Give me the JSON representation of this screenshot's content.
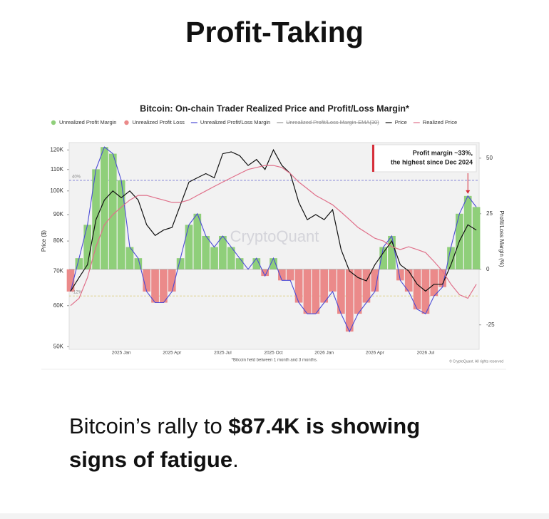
{
  "header": {
    "title": "Profit-Taking"
  },
  "chart_data": {
    "type": "line",
    "title": "Bitcoin: On-chain Trader Realized Price and Profit/Loss Margin*",
    "ylabel": "Price ($)",
    "y2label": "Profit/Loss Margin (%)",
    "log_y": true,
    "watermark": "CryptoQuant",
    "footnote": "*Bitcoin held between 1 month and 3 months.",
    "credit": "© CryptoQuant. All rights reserved",
    "categories": [
      null,
      null,
      null,
      null,
      null,
      null,
      "2025 Jan",
      null,
      null,
      null,
      null,
      null,
      "2025 Apr",
      null,
      null,
      null,
      null,
      null,
      "2025 Jul",
      null,
      null,
      null,
      null,
      null,
      "2025 Oct",
      null,
      null,
      null,
      null,
      null,
      "2026 Jan",
      null,
      null,
      null,
      null,
      null,
      "2026 Apr",
      null,
      null,
      null,
      null,
      null,
      "2026 Jul",
      null,
      null,
      null,
      null,
      null,
      null
    ],
    "ylim": [
      49400,
      124000
    ],
    "yticks": [
      {
        "value": 50000,
        "label": "50K"
      },
      {
        "value": 60000,
        "label": "60K"
      },
      {
        "value": 70000,
        "label": "70K"
      },
      {
        "value": 80000,
        "label": "80K"
      },
      {
        "value": 90000,
        "label": "90K"
      },
      {
        "value": 100000,
        "label": "100K"
      },
      {
        "value": 110000,
        "label": "110K"
      },
      {
        "value": 120000,
        "label": "120K"
      }
    ],
    "y2lim": [
      -36,
      57
    ],
    "y2ticks": [
      -25,
      0,
      25,
      50
    ],
    "reference_lines": [
      {
        "value": 40,
        "label": "40%",
        "color": "#6a6ad0"
      },
      {
        "value": -12,
        "label": "-12%",
        "color": "#d8c870"
      }
    ],
    "annotation": {
      "lines": [
        "Profit margin ~33%,",
        "the highest since Dec 2024"
      ],
      "color": "#d62f3a",
      "index": 47
    },
    "series": [
      {
        "name": "Unrealized Profit Margin",
        "type": "bar",
        "axis": "y2",
        "color": "#8fcf7a",
        "values": [
          null,
          5,
          20,
          45,
          55,
          52,
          40,
          10,
          5,
          null,
          null,
          null,
          null,
          5,
          20,
          25,
          15,
          10,
          15,
          10,
          5,
          null,
          5,
          null,
          5,
          null,
          null,
          null,
          null,
          null,
          null,
          null,
          null,
          null,
          null,
          null,
          null,
          10,
          15,
          null,
          null,
          null,
          null,
          null,
          null,
          10,
          25,
          33,
          28
        ]
      },
      {
        "name": "Unrealized Profit Loss",
        "type": "bar",
        "axis": "y2",
        "color": "#eb8a8a",
        "values": [
          -10,
          null,
          null,
          null,
          null,
          null,
          null,
          null,
          null,
          -10,
          -15,
          -15,
          -10,
          null,
          null,
          null,
          null,
          null,
          null,
          null,
          null,
          null,
          null,
          -3,
          null,
          -5,
          -5,
          -15,
          -20,
          -20,
          -15,
          -10,
          -20,
          -28,
          -20,
          -15,
          -10,
          null,
          null,
          -5,
          -10,
          -18,
          -20,
          -12,
          -8,
          null,
          null,
          null,
          null
        ]
      },
      {
        "name": "Unrealized Profit/Loss Margin",
        "type": "line",
        "axis": "y2",
        "color": "#4b4bd6",
        "values": [
          -10,
          5,
          20,
          45,
          55,
          52,
          40,
          10,
          5,
          -10,
          -15,
          -15,
          -10,
          5,
          20,
          25,
          15,
          10,
          15,
          10,
          5,
          0,
          5,
          -3,
          5,
          -5,
          -5,
          -15,
          -20,
          -20,
          -15,
          -10,
          -20,
          -28,
          -20,
          -15,
          -10,
          10,
          15,
          -5,
          -10,
          -18,
          -20,
          -12,
          -8,
          10,
          25,
          33,
          28
        ]
      },
      {
        "name": "Unrealized Profit/Loss Margin-EMA(30)",
        "type": "line",
        "axis": "y2",
        "color": "#9a9a9a",
        "visible": false
      },
      {
        "name": "Price",
        "type": "line",
        "color": "#111111",
        "values": [
          64000,
          68000,
          72000,
          88000,
          96000,
          100000,
          97000,
          100000,
          96000,
          86000,
          82000,
          84000,
          85000,
          94000,
          104000,
          106000,
          108000,
          106000,
          118000,
          119000,
          117000,
          112000,
          115000,
          110000,
          120000,
          112000,
          108000,
          95000,
          88000,
          90000,
          88000,
          92000,
          77000,
          70000,
          68000,
          67000,
          72000,
          76000,
          80000,
          72000,
          70000,
          66000,
          64000,
          66000,
          66000,
          72000,
          80000,
          86000,
          84000
        ]
      },
      {
        "name": "Realized Price",
        "type": "line",
        "color": "#e0708a",
        "values": [
          60000,
          62000,
          68000,
          78000,
          86000,
          90000,
          93000,
          96000,
          98000,
          98000,
          97000,
          96000,
          95000,
          95000,
          96000,
          98000,
          100000,
          102000,
          104000,
          106000,
          108000,
          110000,
          111000,
          112000,
          112000,
          111000,
          108000,
          104000,
          101000,
          98000,
          96000,
          94000,
          91000,
          88000,
          85000,
          83000,
          81000,
          80000,
          78000,
          77000,
          78000,
          77000,
          76000,
          73000,
          70000,
          66000,
          63000,
          62000,
          66000
        ]
      }
    ]
  },
  "body": {
    "lead": "Bitcoin’s rally to ",
    "emphasis": "$87.4K is showing signs of fatigue",
    "end": "."
  }
}
